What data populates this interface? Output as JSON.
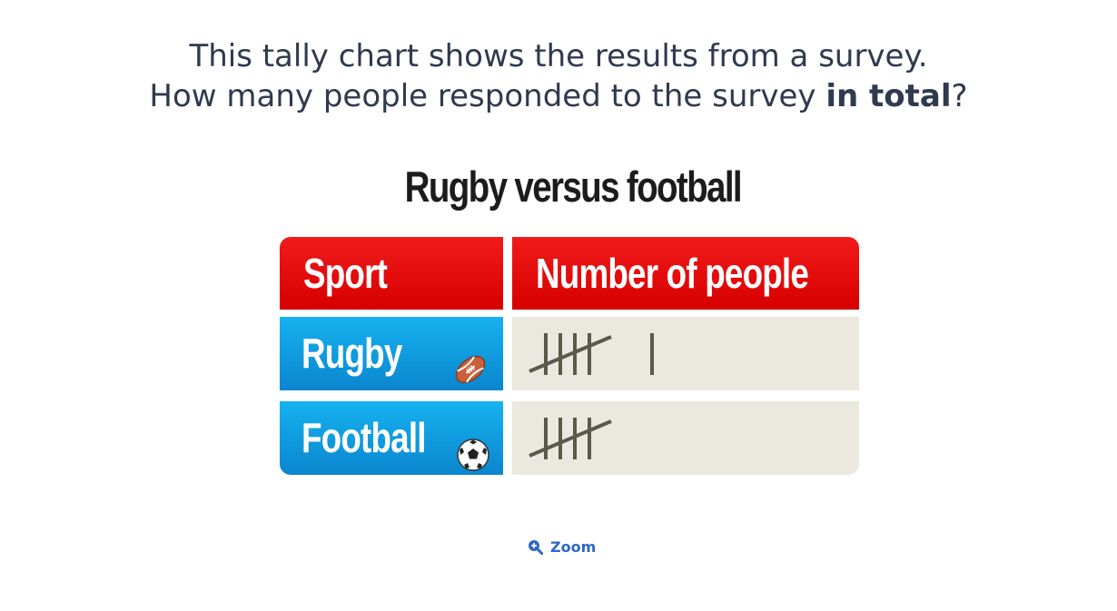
{
  "question": {
    "line1": "This tally chart shows the results from a survey.",
    "line2_prefix": "How many people responded to the survey ",
    "line2_bold": "in total",
    "line2_suffix": "?"
  },
  "chart_data": {
    "type": "table",
    "title": "Rugby versus football",
    "columns": [
      "Sport",
      "Number of people"
    ],
    "rows": [
      {
        "label": "Rugby",
        "icon": "rugby-ball-icon",
        "tally": 6
      },
      {
        "label": "Football",
        "icon": "football-icon",
        "tally": 5
      }
    ]
  },
  "colors": {
    "header": "#e40b0b",
    "label_cell": "#0f9de0",
    "tally_cell": "#ebe8df",
    "tally_mark": "#5a5a4a",
    "zoom_link": "#2d66c9"
  },
  "zoom": {
    "label": "Zoom",
    "icon": "zoom-in-icon"
  }
}
